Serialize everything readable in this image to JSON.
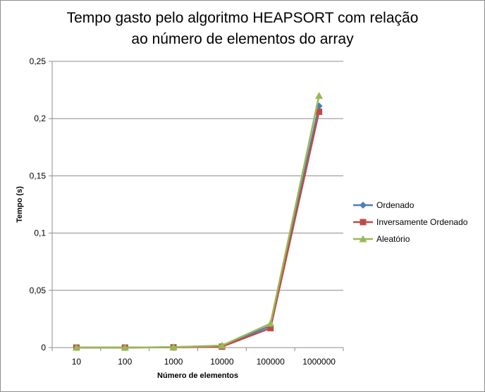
{
  "chart_data": {
    "type": "line",
    "title_line1": "Tempo gasto pelo algoritmo HEAPSORT com relação",
    "title_line2": "ao número de elementos do array",
    "xlabel": "Número de elementos",
    "ylabel": "Tempo (s)",
    "categories": [
      "10",
      "100",
      "1000",
      "10000",
      "100000",
      "1000000"
    ],
    "ylim": [
      0,
      0.25
    ],
    "yticks": [
      {
        "value": 0,
        "label": "0"
      },
      {
        "value": 0.05,
        "label": "0,05"
      },
      {
        "value": 0.1,
        "label": "0,1"
      },
      {
        "value": 0.15,
        "label": "0,15"
      },
      {
        "value": 0.2,
        "label": "0,2"
      },
      {
        "value": 0.25,
        "label": "0,25"
      }
    ],
    "grid": "horizontal",
    "legend_position": "right",
    "series": [
      {
        "name": "Ordenado",
        "color": "#4a7ebb",
        "marker": "diamond",
        "values": [
          0.0,
          0.0,
          0.0003,
          0.0015,
          0.019,
          0.211
        ]
      },
      {
        "name": "Inversamente Ordenado",
        "color": "#be4b48",
        "marker": "square",
        "values": [
          0.0,
          0.0,
          0.0002,
          0.0008,
          0.017,
          0.206
        ]
      },
      {
        "name": "Aleatório",
        "color": "#98b954",
        "marker": "triangle",
        "values": [
          0.0,
          0.0,
          0.0004,
          0.0018,
          0.021,
          0.22
        ]
      }
    ]
  }
}
